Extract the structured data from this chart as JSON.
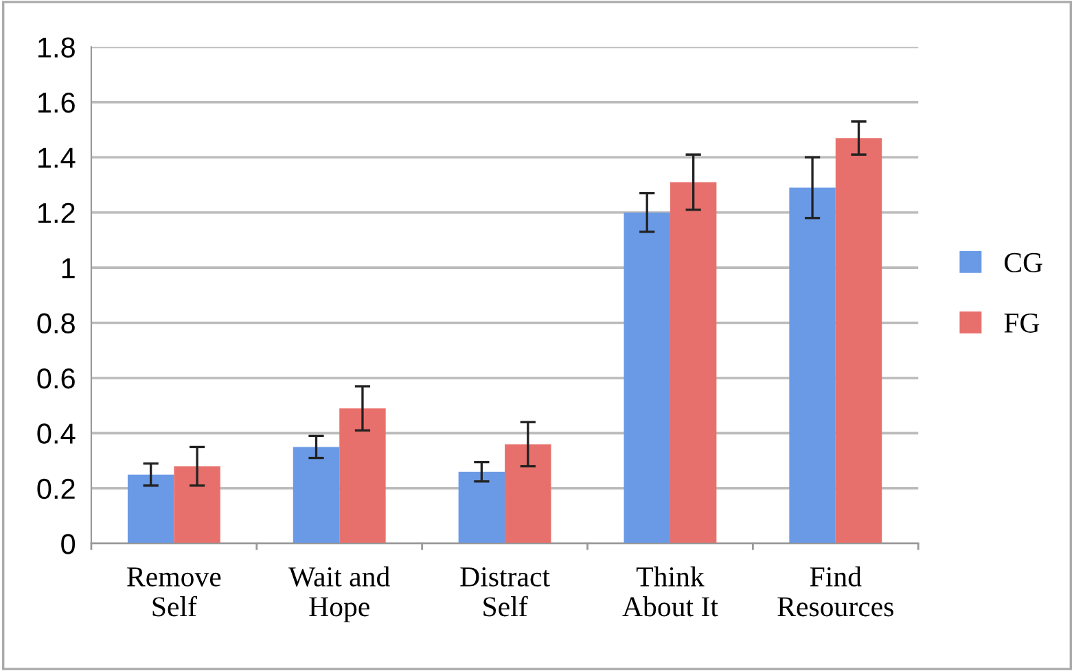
{
  "chart_data": {
    "type": "bar",
    "categories": [
      "Remove\nSelf",
      "Wait and\nHope",
      "Distract\nSelf",
      "Think\nAbout It",
      "Find\nResources"
    ],
    "series": [
      {
        "name": "CG",
        "color": "#6a9ae6",
        "values": [
          0.25,
          0.35,
          0.26,
          1.2,
          1.29
        ],
        "errors": [
          0.04,
          0.04,
          0.035,
          0.07,
          0.11
        ]
      },
      {
        "name": "FG",
        "color": "#e8706c",
        "values": [
          0.28,
          0.49,
          0.36,
          1.31,
          1.47
        ],
        "errors": [
          0.07,
          0.08,
          0.08,
          0.1,
          0.06
        ]
      }
    ],
    "ylim": [
      0,
      1.8
    ],
    "yticks": [
      0,
      0.2,
      0.4,
      0.6,
      0.8,
      1,
      1.2,
      1.4,
      1.6,
      1.8
    ],
    "grid": "y",
    "legend": "right"
  }
}
